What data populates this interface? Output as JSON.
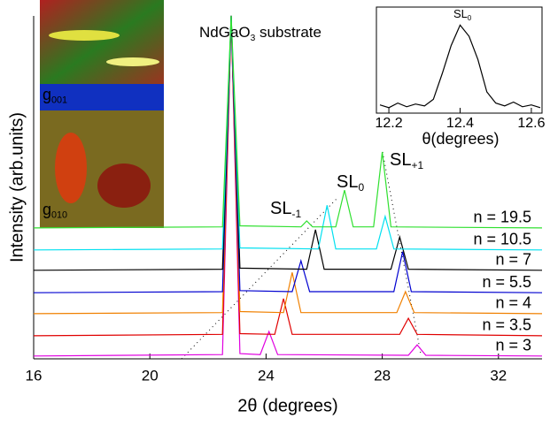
{
  "chart_data": [
    {
      "type": "line",
      "xlabel": "2θ (degrees)",
      "ylabel": "Intensity (arb.units)",
      "xlim": [
        16,
        33.5
      ],
      "ylim": [
        0,
        100
      ],
      "xticks": [
        16,
        20,
        24,
        28,
        32
      ],
      "annotations": [
        {
          "text": "NdGaO",
          "sub": "3",
          "after": " substrate"
        },
        {
          "text": "SL",
          "sub": "-1"
        },
        {
          "text": "SL",
          "sub": "0"
        },
        {
          "text": "SL",
          "sub": "+1"
        }
      ],
      "series": [
        {
          "name": "n = 3",
          "color": "#e000e0",
          "x": [
            16,
            22.5,
            22.8,
            23.1,
            23.8,
            24.1,
            24.4,
            28.9,
            29.2,
            29.5,
            33.5
          ],
          "values": [
            0.8,
            1.2,
            98,
            1.5,
            1.2,
            7.8,
            1.2,
            1.0,
            4.0,
            1.0,
            0.8
          ]
        },
        {
          "name": "n = 3.5",
          "color": "#e00000",
          "x": [
            16,
            22.5,
            22.8,
            23.1,
            24.3,
            24.6,
            24.9,
            28.6,
            28.9,
            29.2,
            33.5
          ],
          "values": [
            6.6,
            7.0,
            98,
            7.2,
            7.0,
            17.2,
            7.0,
            7.0,
            11.6,
            7.0,
            6.6
          ]
        },
        {
          "name": "n = 4",
          "color": "#f08000",
          "x": [
            16,
            22.5,
            22.8,
            23.1,
            24.6,
            24.9,
            25.2,
            28.5,
            28.8,
            29.1,
            33.5
          ],
          "values": [
            12.9,
            13.2,
            98,
            13.5,
            13.2,
            24.7,
            13.2,
            13.2,
            19.2,
            13.2,
            12.9
          ]
        },
        {
          "name": "n = 5.5",
          "color": "#0000d0",
          "x": [
            16,
            22.5,
            22.8,
            23.1,
            24.9,
            25.2,
            25.5,
            28.4,
            28.7,
            29.0,
            33.5
          ],
          "values": [
            18.9,
            19.2,
            98,
            19.5,
            19.2,
            28.0,
            19.2,
            19.2,
            30.6,
            19.2,
            18.9
          ]
        },
        {
          "name": "n = 7",
          "color": "#000000",
          "x": [
            16,
            22.5,
            22.8,
            23.1,
            25.4,
            25.7,
            26.0,
            28.3,
            28.6,
            28.9,
            33.5
          ],
          "values": [
            25.3,
            25.6,
            98,
            25.9,
            25.6,
            36.9,
            25.6,
            25.6,
            34.8,
            25.6,
            25.3
          ]
        },
        {
          "name": "n = 10.5",
          "color": "#00e0f0",
          "x": [
            16,
            22.5,
            22.8,
            23.1,
            25.8,
            26.1,
            26.4,
            27.8,
            28.1,
            28.4,
            33.5
          ],
          "values": [
            31.1,
            31.4,
            98,
            31.7,
            31.4,
            43.9,
            31.4,
            31.4,
            40.7,
            31.4,
            31.1
          ]
        },
        {
          "name": "n = 19.5",
          "color": "#30e030",
          "x": [
            16,
            22.5,
            22.8,
            23.1,
            25.2,
            25.4,
            25.6,
            26.4,
            26.7,
            27.0,
            27.7,
            28.0,
            28.3,
            33.5
          ],
          "values": [
            37.4,
            37.7,
            98,
            38.0,
            37.7,
            39.4,
            37.7,
            37.7,
            48.2,
            37.7,
            37.7,
            59.1,
            37.7,
            37.4
          ]
        }
      ]
    },
    {
      "type": "line",
      "xlabel": "θ(degrees)",
      "xlim": [
        12.17,
        12.63
      ],
      "ylim": [
        0,
        100
      ],
      "xticks": [
        12.2,
        12.4,
        12.6
      ],
      "annotations": [
        {
          "text": "SL",
          "sub": "0"
        }
      ],
      "series": [
        {
          "color": "#000000",
          "x": [
            12.175,
            12.2,
            12.225,
            12.25,
            12.275,
            12.3,
            12.325,
            12.35,
            12.375,
            12.4,
            12.425,
            12.45,
            12.475,
            12.5,
            12.525,
            12.55,
            12.575,
            12.6,
            12.625
          ],
          "values": [
            6,
            3,
            8,
            4,
            7,
            5,
            12,
            40,
            70,
            92,
            80,
            55,
            20,
            8,
            5,
            9,
            4,
            6,
            3
          ]
        }
      ]
    }
  ],
  "image_labels": [
    {
      "text": "g",
      "sub": "001"
    },
    {
      "text": "g",
      "sub": "010"
    }
  ]
}
